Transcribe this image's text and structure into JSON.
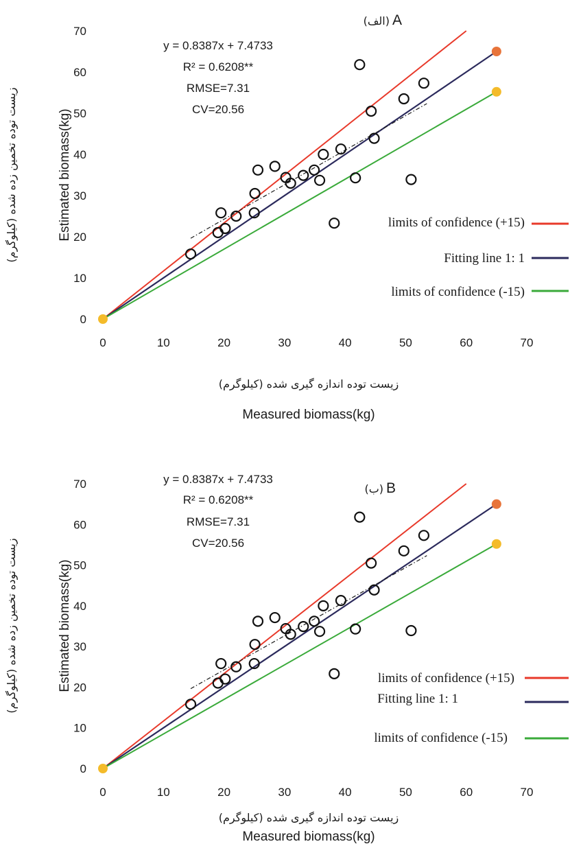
{
  "chart_data": [
    {
      "type": "scatter",
      "panel_label": "A",
      "panel_label_fa": "(الف)",
      "xlabel": "Measured biomass(kg)",
      "xlabel_fa": "زیست توده اندازه گیری شده (کیلوگرم)",
      "ylabel": "Estimated biomass(kg)",
      "ylabel_fa": "زیست توده تخمین زده شده (کیلوگرم)",
      "xlim": [
        0,
        70
      ],
      "ylim": [
        0,
        70
      ],
      "xticks": [
        "0",
        "10",
        "20",
        "30",
        "40",
        "50",
        "60",
        "70"
      ],
      "yticks": [
        "0",
        "10",
        "20",
        "30",
        "40",
        "50",
        "60",
        "70"
      ],
      "annotations": [
        "y = 0.8387x + 7.4733",
        "R² = 0.6208**",
        "RMSE=7.31",
        "CV=20.56"
      ],
      "legend": [
        {
          "label": "limits of confidence  (+15)",
          "color": "#e8392a"
        },
        {
          "label": "Fitting line 1: 1",
          "color": "#2b2a5c"
        },
        {
          "label": "limits of confidence  (-15)",
          "color": "#3aaa3a"
        }
      ],
      "points": [
        {
          "x": 14.5,
          "y": 15.8
        },
        {
          "x": 19.0,
          "y": 21.0
        },
        {
          "x": 19.5,
          "y": 25.8
        },
        {
          "x": 20.2,
          "y": 22.0
        },
        {
          "x": 22.0,
          "y": 25.0
        },
        {
          "x": 25.0,
          "y": 25.8
        },
        {
          "x": 25.1,
          "y": 30.5
        },
        {
          "x": 25.6,
          "y": 36.2
        },
        {
          "x": 28.4,
          "y": 37.1
        },
        {
          "x": 30.2,
          "y": 34.4
        },
        {
          "x": 31.0,
          "y": 33.0
        },
        {
          "x": 33.1,
          "y": 34.9
        },
        {
          "x": 34.9,
          "y": 36.2
        },
        {
          "x": 35.8,
          "y": 33.7
        },
        {
          "x": 36.4,
          "y": 40.0
        },
        {
          "x": 38.2,
          "y": 23.3
        },
        {
          "x": 39.3,
          "y": 41.3
        },
        {
          "x": 41.7,
          "y": 34.3
        },
        {
          "x": 42.4,
          "y": 61.8
        },
        {
          "x": 44.3,
          "y": 50.5
        },
        {
          "x": 44.8,
          "y": 43.9
        },
        {
          "x": 49.7,
          "y": 53.5
        },
        {
          "x": 50.9,
          "y": 33.9
        },
        {
          "x": 53.0,
          "y": 57.3
        }
      ],
      "lines": {
        "upper": {
          "color": "#e8392a",
          "x": [
            0,
            60
          ],
          "y": [
            0,
            70
          ]
        },
        "one_to_one": {
          "color": "#2b2a5c",
          "x": [
            0,
            65
          ],
          "y": [
            0,
            65
          ]
        },
        "lower": {
          "color": "#3aaa3a",
          "x": [
            0,
            65
          ],
          "y": [
            0,
            55.2
          ]
        },
        "fit": {
          "color": "#1a1a1a",
          "x": [
            14.5,
            53.5
          ],
          "y": [
            19.63,
            52.34
          ]
        }
      },
      "endpoint_markers": [
        {
          "x": 0,
          "y": 0,
          "color": "#f4bb2a"
        },
        {
          "x": 65,
          "y": 65,
          "color": "#e8743a"
        },
        {
          "x": 65,
          "y": 55.2,
          "color": "#f4bb2a"
        }
      ]
    },
    {
      "type": "scatter",
      "panel_label": "B",
      "panel_label_fa": "(ب)",
      "xlabel": "Measured biomass(kg)",
      "xlabel_fa": "زیست توده اندازه گیری شده (کیلوگرم)",
      "ylabel": "Estimated biomass(kg)",
      "ylabel_fa": "زیست توده تخمین زده شده (کیلوگرم)",
      "xlim": [
        0,
        70
      ],
      "ylim": [
        0,
        70
      ],
      "xticks": [
        "0",
        "10",
        "20",
        "30",
        "40",
        "50",
        "60",
        "70"
      ],
      "yticks": [
        "0",
        "10",
        "20",
        "30",
        "40",
        "50",
        "60",
        "70"
      ],
      "annotations": [
        "y = 0.8387x + 7.4733",
        "R² = 0.6208**",
        "RMSE=7.31",
        "CV=20.56"
      ],
      "legend": [
        {
          "label": "limits of confidence  (+15)",
          "color": "#e8392a"
        },
        {
          "label": "Fitting line 1: 1",
          "color": "#2b2a5c"
        },
        {
          "label": "limits of confidence  (-15)",
          "color": "#3aaa3a"
        }
      ],
      "points": [
        {
          "x": 14.5,
          "y": 15.8
        },
        {
          "x": 19.0,
          "y": 21.0
        },
        {
          "x": 19.5,
          "y": 25.8
        },
        {
          "x": 20.2,
          "y": 22.0
        },
        {
          "x": 22.0,
          "y": 25.0
        },
        {
          "x": 25.0,
          "y": 25.8
        },
        {
          "x": 25.1,
          "y": 30.5
        },
        {
          "x": 25.6,
          "y": 36.2
        },
        {
          "x": 28.4,
          "y": 37.1
        },
        {
          "x": 30.2,
          "y": 34.4
        },
        {
          "x": 31.0,
          "y": 33.0
        },
        {
          "x": 33.1,
          "y": 34.9
        },
        {
          "x": 34.9,
          "y": 36.2
        },
        {
          "x": 35.8,
          "y": 33.7
        },
        {
          "x": 36.4,
          "y": 40.0
        },
        {
          "x": 38.2,
          "y": 23.3
        },
        {
          "x": 39.3,
          "y": 41.3
        },
        {
          "x": 41.7,
          "y": 34.3
        },
        {
          "x": 42.4,
          "y": 61.8
        },
        {
          "x": 44.3,
          "y": 50.5
        },
        {
          "x": 44.8,
          "y": 43.9
        },
        {
          "x": 49.7,
          "y": 53.5
        },
        {
          "x": 50.9,
          "y": 33.9
        },
        {
          "x": 53.0,
          "y": 57.3
        }
      ],
      "lines": {
        "upper": {
          "color": "#e8392a",
          "x": [
            0,
            60
          ],
          "y": [
            0,
            70
          ]
        },
        "one_to_one": {
          "color": "#2b2a5c",
          "x": [
            0,
            65
          ],
          "y": [
            0,
            65
          ]
        },
        "lower": {
          "color": "#3aaa3a",
          "x": [
            0,
            65
          ],
          "y": [
            0,
            55.2
          ]
        },
        "fit": {
          "color": "#1a1a1a",
          "x": [
            14.5,
            53.5
          ],
          "y": [
            19.63,
            52.34
          ]
        }
      },
      "endpoint_markers": [
        {
          "x": 0,
          "y": 0,
          "color": "#f4bb2a"
        },
        {
          "x": 65,
          "y": 65,
          "color": "#e8743a"
        },
        {
          "x": 65,
          "y": 55.2,
          "color": "#f4bb2a"
        }
      ]
    }
  ]
}
